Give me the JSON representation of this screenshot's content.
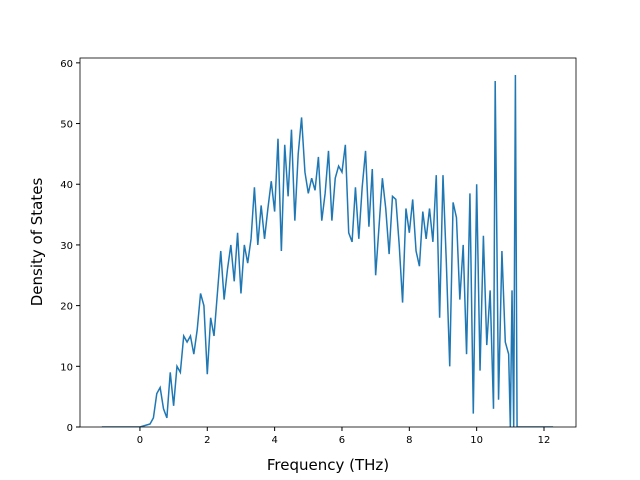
{
  "chart_data": {
    "type": "line",
    "xlabel": "Frequency (THz)",
    "ylabel": "Density of States",
    "x": [
      -1.13,
      0,
      0.3,
      0.4,
      0.5,
      0.6,
      0.7,
      0.8,
      0.9,
      1.0,
      1.1,
      1.2,
      1.3,
      1.4,
      1.5,
      1.6,
      1.7,
      1.8,
      1.9,
      2.0,
      2.1,
      2.2,
      2.3,
      2.4,
      2.5,
      2.6,
      2.7,
      2.8,
      2.9,
      3.0,
      3.1,
      3.2,
      3.3,
      3.4,
      3.5,
      3.6,
      3.7,
      3.8,
      3.9,
      4.0,
      4.1,
      4.2,
      4.3,
      4.4,
      4.5,
      4.6,
      4.7,
      4.8,
      4.9,
      5.0,
      5.1,
      5.2,
      5.3,
      5.4,
      5.5,
      5.6,
      5.7,
      5.8,
      5.9,
      6.0,
      6.1,
      6.2,
      6.3,
      6.4,
      6.5,
      6.6,
      6.7,
      6.8,
      6.9,
      7.0,
      7.1,
      7.2,
      7.3,
      7.4,
      7.5,
      7.6,
      7.7,
      7.8,
      7.9,
      8.0,
      8.1,
      8.2,
      8.3,
      8.4,
      8.5,
      8.6,
      8.7,
      8.8,
      8.9,
      9.0,
      9.1,
      9.2,
      9.3,
      9.4,
      9.5,
      9.6,
      9.7,
      9.8,
      9.9,
      10.0,
      10.1,
      10.2,
      10.3,
      10.4,
      10.5,
      10.55,
      10.65,
      10.75,
      10.85,
      10.95,
      11.0,
      11.05,
      11.1,
      11.15,
      11.2,
      11.3,
      12.27
    ],
    "series": [
      {
        "color": "#1f77b4",
        "values": [
          0,
          0,
          0.5,
          1.5,
          5.5,
          6.5,
          3,
          1.5,
          9,
          3.5,
          10,
          9,
          15,
          14,
          15,
          12,
          16,
          22,
          20,
          8.7,
          18,
          15,
          22,
          29,
          21,
          26,
          30,
          24,
          32,
          22,
          30,
          27,
          31,
          39.5,
          30,
          36.5,
          31,
          36,
          40.5,
          35.5,
          47.5,
          29,
          46.5,
          38,
          49,
          34,
          45,
          51,
          42,
          38.5,
          41,
          39,
          44.5,
          34,
          38.5,
          45.5,
          34,
          41,
          43,
          42,
          46.5,
          32,
          30.5,
          39.5,
          31,
          39.5,
          45.5,
          33,
          42.5,
          25,
          33,
          41,
          36,
          28.5,
          38,
          37.5,
          30,
          20.5,
          36,
          32,
          37.5,
          29,
          26.5,
          35.5,
          31,
          36,
          30.5,
          41.5,
          18,
          41.5,
          27,
          10,
          37,
          34.5,
          21,
          30,
          12,
          38.5,
          2.2,
          40,
          9.3,
          31.5,
          13.5,
          22.5,
          3,
          57,
          4.5,
          29,
          14,
          12,
          0,
          22.5,
          0,
          58,
          0,
          0,
          0
        ]
      }
    ],
    "xlim": [
      -1.78,
      12.95
    ],
    "ylim": [
      0,
      60.8
    ],
    "xticks": [
      0,
      2,
      4,
      6,
      8,
      10,
      12
    ],
    "yticks": [
      0,
      10,
      20,
      30,
      40,
      50,
      60
    ]
  }
}
